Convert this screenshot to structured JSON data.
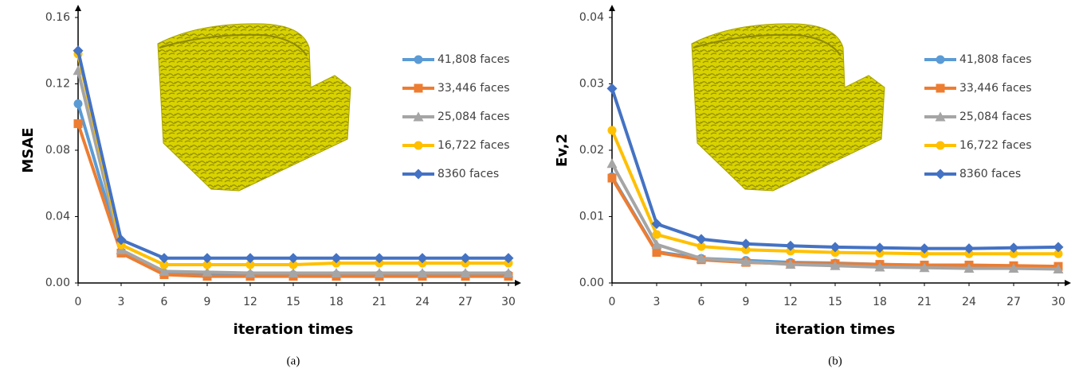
{
  "chart_data": [
    {
      "type": "line",
      "ylabel": "MSAE",
      "xlabel": "iteration times",
      "caption": "(a)",
      "x": [
        0,
        3,
        6,
        9,
        12,
        15,
        18,
        21,
        24,
        27,
        30
      ],
      "xlim": [
        0,
        30
      ],
      "xticks": [
        0,
        3,
        6,
        9,
        12,
        15,
        18,
        21,
        24,
        27,
        30
      ],
      "ylim": [
        0,
        0.16
      ],
      "yticks": [
        {
          "value": 0,
          "label": "0.00"
        },
        {
          "value": 0.04,
          "label": "0.04"
        },
        {
          "value": 0.08,
          "label": "0.08"
        },
        {
          "value": 0.12,
          "label": "0.12"
        },
        {
          "value": 0.16,
          "label": "0.16"
        }
      ],
      "series": [
        {
          "name": "41,808 faces",
          "color": "#5b9bd5",
          "marker": "circle",
          "values": [
            0.108,
            0.019,
            0.006,
            0.005,
            0.005,
            0.005,
            0.005,
            0.005,
            0.005,
            0.005,
            0.005
          ]
        },
        {
          "name": "33,446 faces",
          "color": "#ed7d31",
          "marker": "square",
          "values": [
            0.096,
            0.018,
            0.005,
            0.004,
            0.004,
            0.004,
            0.004,
            0.004,
            0.004,
            0.004,
            0.004
          ]
        },
        {
          "name": "25,084 faces",
          "color": "#a5a5a5",
          "marker": "triangle",
          "values": [
            0.128,
            0.02,
            0.007,
            0.0065,
            0.006,
            0.006,
            0.006,
            0.006,
            0.006,
            0.006,
            0.006
          ]
        },
        {
          "name": "16,722 faces",
          "color": "#ffc000",
          "marker": "circle",
          "values": [
            0.138,
            0.023,
            0.011,
            0.011,
            0.011,
            0.011,
            0.012,
            0.012,
            0.012,
            0.012,
            0.012
          ]
        },
        {
          "name": "8360 faces",
          "color": "#4472c4",
          "marker": "diamond",
          "values": [
            0.14,
            0.026,
            0.015,
            0.015,
            0.015,
            0.015,
            0.015,
            0.015,
            0.015,
            0.015,
            0.015
          ]
        }
      ]
    },
    {
      "type": "line",
      "ylabel": "Ev,2",
      "xlabel": "iteration times",
      "caption": "(b)",
      "x": [
        0,
        3,
        6,
        9,
        12,
        15,
        18,
        21,
        24,
        27,
        30
      ],
      "xlim": [
        0,
        30
      ],
      "xticks": [
        0,
        3,
        6,
        9,
        12,
        15,
        18,
        21,
        24,
        27,
        30
      ],
      "ylim": [
        0,
        0.04
      ],
      "yticks": [
        {
          "value": 0,
          "label": "0.00"
        },
        {
          "value": 0.01,
          "label": "0.01"
        },
        {
          "value": 0.02,
          "label": "0.02"
        },
        {
          "value": 0.03,
          "label": "0.03"
        },
        {
          "value": 0.04,
          "label": "0.04"
        }
      ],
      "series": [
        {
          "name": "41,808 faces",
          "color": "#5b9bd5",
          "marker": "circle",
          "values": [
            0.016,
            0.0047,
            0.0037,
            0.0034,
            0.0031,
            0.003,
            0.0028,
            0.0026,
            0.0025,
            0.0024,
            0.0023
          ]
        },
        {
          "name": "33,446 faces",
          "color": "#ed7d31",
          "marker": "square",
          "values": [
            0.0158,
            0.0046,
            0.0035,
            0.0031,
            0.0029,
            0.0029,
            0.0028,
            0.0027,
            0.0027,
            0.0026,
            0.0025
          ]
        },
        {
          "name": "25,084 faces",
          "color": "#a5a5a5",
          "marker": "triangle",
          "values": [
            0.018,
            0.0058,
            0.0037,
            0.0032,
            0.0028,
            0.0026,
            0.0024,
            0.0023,
            0.0022,
            0.0022,
            0.0021
          ]
        },
        {
          "name": "16,722 faces",
          "color": "#ffc000",
          "marker": "circle",
          "values": [
            0.023,
            0.0073,
            0.0055,
            0.005,
            0.0048,
            0.0046,
            0.0045,
            0.0044,
            0.0044,
            0.0044,
            0.0044
          ]
        },
        {
          "name": "8360 faces",
          "color": "#4472c4",
          "marker": "diamond",
          "values": [
            0.0293,
            0.0089,
            0.0066,
            0.0059,
            0.0056,
            0.0054,
            0.0053,
            0.0052,
            0.0052,
            0.0053,
            0.0054
          ]
        }
      ]
    }
  ]
}
